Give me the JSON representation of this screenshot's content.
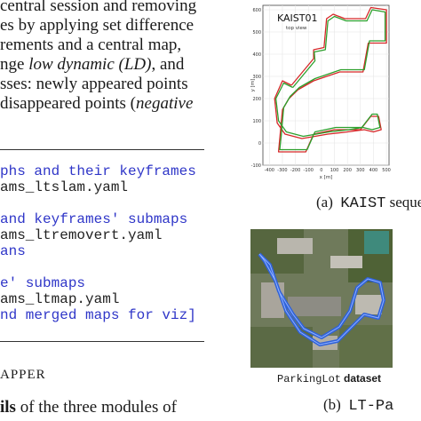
{
  "paragraph": [
    "central session and removing",
    "es by applying set difference",
    "rements and a central map,",
    "nge low dynamic (LD), and",
    "sses: newly appeared points",
    "disappeared points (negative"
  ],
  "code_lines": [
    {
      "text": "phs and their keyframes",
      "kind": "comment"
    },
    {
      "text": "ams_ltslam.yaml",
      "kind": "plain"
    },
    {
      "text": "",
      "kind": "plain"
    },
    {
      "text": "and keyframes' submaps",
      "kind": "comment"
    },
    {
      "text": "ams_ltremovert.yaml",
      "kind": "plain"
    },
    {
      "text": "ans",
      "kind": "comment"
    },
    {
      "text": "",
      "kind": "plain"
    },
    {
      "text": "e' submaps",
      "kind": "comment"
    },
    {
      "text": "ams_ltmap.yaml",
      "kind": "plain"
    },
    {
      "text": "nd merged maps for viz]",
      "kind": "comment"
    }
  ],
  "section_heading": "APPER",
  "bottom_text_prefix": "ils",
  "bottom_text_rest": " of the three modules of",
  "figure_a": {
    "chart_data": {
      "type": "line",
      "title": "KAIST01",
      "subtitle": "top view",
      "xlabel": "x [m]",
      "ylabel": "y [m]",
      "xlim": [
        -450,
        520
      ],
      "ylim": [
        -100,
        620
      ],
      "x_ticks": [
        "-400",
        "-300",
        "-200",
        "-100",
        "0",
        "100",
        "200",
        "300",
        "400",
        "500"
      ],
      "y_ticks": [
        "600",
        "500",
        "400",
        "300",
        "200",
        "100",
        "0",
        "-100"
      ],
      "grid": true,
      "series": [
        {
          "color": "#d62728",
          "points": [
            [
              -230,
              260
            ],
            [
              -60,
              380
            ],
            [
              -60,
              420
            ],
            [
              20,
              430
            ],
            [
              40,
              560
            ],
            [
              90,
              580
            ],
            [
              180,
              560
            ],
            [
              340,
              560
            ],
            [
              380,
              610
            ],
            [
              500,
              600
            ],
            [
              500,
              450
            ],
            [
              360,
              450
            ],
            [
              320,
              320
            ],
            [
              140,
              320
            ],
            [
              40,
              300
            ],
            [
              -60,
              280
            ],
            [
              -180,
              240
            ],
            [
              -250,
              200
            ],
            [
              -300,
              150
            ],
            [
              -320,
              20
            ],
            [
              -330,
              -40
            ],
            [
              -120,
              -40
            ],
            [
              -60,
              40
            ],
            [
              100,
              60
            ],
            [
              300,
              60
            ],
            [
              380,
              120
            ],
            [
              440,
              120
            ],
            [
              460,
              60
            ],
            [
              400,
              50
            ],
            [
              330,
              60
            ],
            [
              200,
              50
            ],
            [
              50,
              40
            ],
            [
              -150,
              20
            ],
            [
              -280,
              40
            ],
            [
              -340,
              90
            ],
            [
              -360,
              200
            ],
            [
              -300,
              280
            ],
            [
              -230,
              260
            ]
          ]
        },
        {
          "color": "#2ca02c",
          "points": [
            [
              -220,
              250
            ],
            [
              -50,
              370
            ],
            [
              -55,
              410
            ],
            [
              30,
              420
            ],
            [
              50,
              550
            ],
            [
              100,
              570
            ],
            [
              190,
              550
            ],
            [
              350,
              550
            ],
            [
              390,
              600
            ],
            [
              490,
              590
            ],
            [
              490,
              460
            ],
            [
              370,
              460
            ],
            [
              330,
              330
            ],
            [
              150,
              330
            ],
            [
              50,
              310
            ],
            [
              -50,
              290
            ],
            [
              -170,
              250
            ],
            [
              -240,
              210
            ],
            [
              -290,
              160
            ],
            [
              -310,
              30
            ],
            [
              -320,
              -30
            ],
            [
              -110,
              -30
            ],
            [
              -50,
              50
            ],
            [
              110,
              70
            ],
            [
              310,
              70
            ],
            [
              390,
              130
            ],
            [
              430,
              130
            ],
            [
              450,
              70
            ],
            [
              390,
              60
            ],
            [
              320,
              70
            ],
            [
              210,
              60
            ],
            [
              60,
              50
            ],
            [
              -140,
              30
            ],
            [
              -270,
              50
            ],
            [
              -330,
              100
            ],
            [
              -350,
              200
            ],
            [
              -290,
              270
            ],
            [
              -220,
              250
            ]
          ]
        }
      ]
    },
    "caption_prefix": "(a)",
    "caption_mono": "KAIST",
    "caption_rest": " seque"
  },
  "figure_b": {
    "dataset_label_mono": "ParkingLot",
    "dataset_label_bold": "dataset",
    "caption_prefix": "(b)",
    "caption_mono": "LT-Pa"
  },
  "colors": {
    "code_comment": "#2f36c8",
    "trajectory_red": "#d62728",
    "trajectory_green": "#2ca02c",
    "aerial_path": "#2f62d9"
  }
}
